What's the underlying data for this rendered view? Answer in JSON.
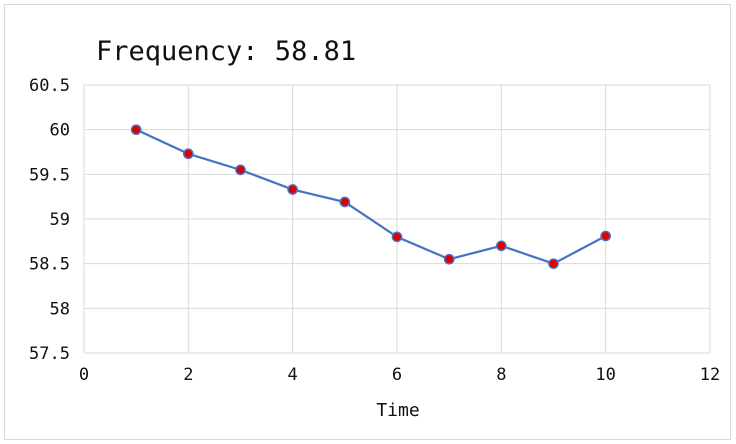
{
  "chart_data": {
    "type": "scatter",
    "title": "Frequency:  58.81",
    "xlabel": "Time",
    "ylabel": "",
    "xlim": [
      0,
      12
    ],
    "ylim": [
      57.5,
      60.5
    ],
    "x_ticks": [
      "0",
      "2",
      "4",
      "6",
      "8",
      "10",
      "12"
    ],
    "y_ticks": [
      "60.5",
      "60",
      "59.5",
      "59",
      "58.5",
      "58",
      "57.5"
    ],
    "grid": true,
    "legend": false,
    "line_color": "#4472c4",
    "marker_color": "#e00000",
    "series": [
      {
        "x": [
          1,
          2,
          3,
          4,
          5,
          6,
          7,
          8,
          9,
          10
        ],
        "y": [
          60,
          59.73,
          59.55,
          59.33,
          59.19,
          58.8,
          58.55,
          58.7,
          58.5,
          58.81
        ]
      }
    ]
  }
}
